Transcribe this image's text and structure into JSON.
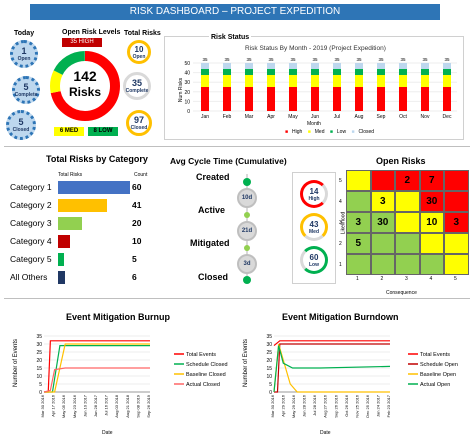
{
  "title": "RISK DASHBOARD – PROJECT EXPEDITION",
  "today": {
    "label": "Today",
    "open": "1",
    "open_label": "Open",
    "complete": "5",
    "complete_label": "Complete",
    "closed": "5",
    "closed_label": "Closed"
  },
  "open_levels": {
    "label": "Open Risk Levels",
    "high": "35 HIGH",
    "total": "142",
    "unit": "Risks",
    "med": "6 MED",
    "low": "8 LOW"
  },
  "total_risks": {
    "label": "Total Risks",
    "open": "10",
    "open_label": "Open",
    "complete": "35",
    "complete_label": "Complete",
    "closed": "97",
    "closed_label": "Closed"
  },
  "status_chart": {
    "panel_label": "Risk Status",
    "title": "Risk Status By Month - 2019 (Project Expedition)",
    "xlabel": "Month",
    "ylabel": "Num Risks",
    "yticks": [
      "0",
      "10",
      "20",
      "30",
      "40",
      "50"
    ],
    "months": [
      "Jan",
      "Feb",
      "Mar",
      "Apr",
      "May",
      "Jun",
      "Jul",
      "Aug",
      "Sep",
      "Oct",
      "Nov",
      "Dec"
    ],
    "top_labels": [
      "35",
      "35",
      "35",
      "35",
      "35",
      "35",
      "35",
      "35",
      "35",
      "35",
      "35",
      "35"
    ],
    "legend": [
      "High",
      "Med",
      "Low",
      "Closed"
    ]
  },
  "category": {
    "title": "Total Risks by Category",
    "col1": "Total Risks",
    "col2": "Count",
    "items": [
      {
        "name": "Category 1",
        "count": "60",
        "value": 60,
        "color": "#4472c4"
      },
      {
        "name": "Category 2",
        "count": "41",
        "value": 41,
        "color": "#ffc000"
      },
      {
        "name": "Category 3",
        "count": "20",
        "value": 20,
        "color": "#92d050"
      },
      {
        "name": "Category 4",
        "count": "10",
        "value": 10,
        "color": "#c00000"
      },
      {
        "name": "Category 5",
        "count": "5",
        "value": 5,
        "color": "#00b050"
      },
      {
        "name": "All Others",
        "count": "6",
        "value": 6,
        "color": "#203864"
      }
    ]
  },
  "cycle": {
    "title": "Avg Cycle Time (Cumulative)",
    "stages": [
      "Created",
      "Active",
      "Mitigated",
      "Closed"
    ],
    "times": [
      "10d",
      "21d",
      "3d"
    ]
  },
  "open_risks": {
    "title": "Open Risks",
    "high": "14",
    "high_label": "High",
    "med": "43",
    "med_label": "Med",
    "low": "60",
    "low_label": "Low",
    "ylabel": "Likelihood",
    "xlabel": "Consequence",
    "rows": [
      "5",
      "4",
      "3",
      "2",
      "1"
    ],
    "cols": [
      "1",
      "2",
      "3",
      "4",
      "5"
    ],
    "cells": [
      "",
      "",
      "2",
      "7",
      "",
      "",
      "3",
      "",
      "30",
      "",
      "3",
      "30",
      "",
      "10",
      "3",
      "5",
      "",
      "",
      "",
      ""
    ]
  },
  "burnup": {
    "title": "Event Mitigation Burnup",
    "ylabel": "Number of Events",
    "xlabel": "Date",
    "yticks": [
      "0",
      "5",
      "10",
      "15",
      "20",
      "25",
      "30",
      "35"
    ],
    "dates": [
      "Mar 30 2016",
      "Apr 17 2016",
      "May 05 2016",
      "May 23 2016",
      "Jun 10 2017",
      "Jun 28 2017",
      "Jul 16 2017",
      "Aug 03 2018",
      "Aug 21 2018",
      "Sep 08 2019",
      "Sep 26 2019"
    ],
    "legend": [
      "Total Events",
      "Schedule Closed",
      "Baseline Closed",
      "Actual Closed"
    ]
  },
  "burndown": {
    "title": "Event Mitigation Burndown",
    "ylabel": "Number of Events",
    "xlabel": "Date",
    "yticks": [
      "0",
      "5",
      "10",
      "15",
      "20",
      "25",
      "30",
      "35"
    ],
    "dates": [
      "Mar 30 2016",
      "Apr 29 2016",
      "May 29 2016",
      "Jun 28 2016",
      "Jul 28 2016",
      "Aug 27 2016",
      "Sep 26 2016",
      "Oct 26 2016",
      "Nov 25 2016",
      "Dec 25 2016",
      "Jan 24 2017",
      "Feb 23 2017"
    ],
    "legend": [
      "Total Events",
      "Schedule Open",
      "Baseline Open",
      "Actual Open"
    ]
  },
  "colors": {
    "blue": "#2e75b6",
    "red": "#ff0000",
    "green": "#00b050",
    "yellow": "#ffff00",
    "orange": "#ffc000"
  }
}
